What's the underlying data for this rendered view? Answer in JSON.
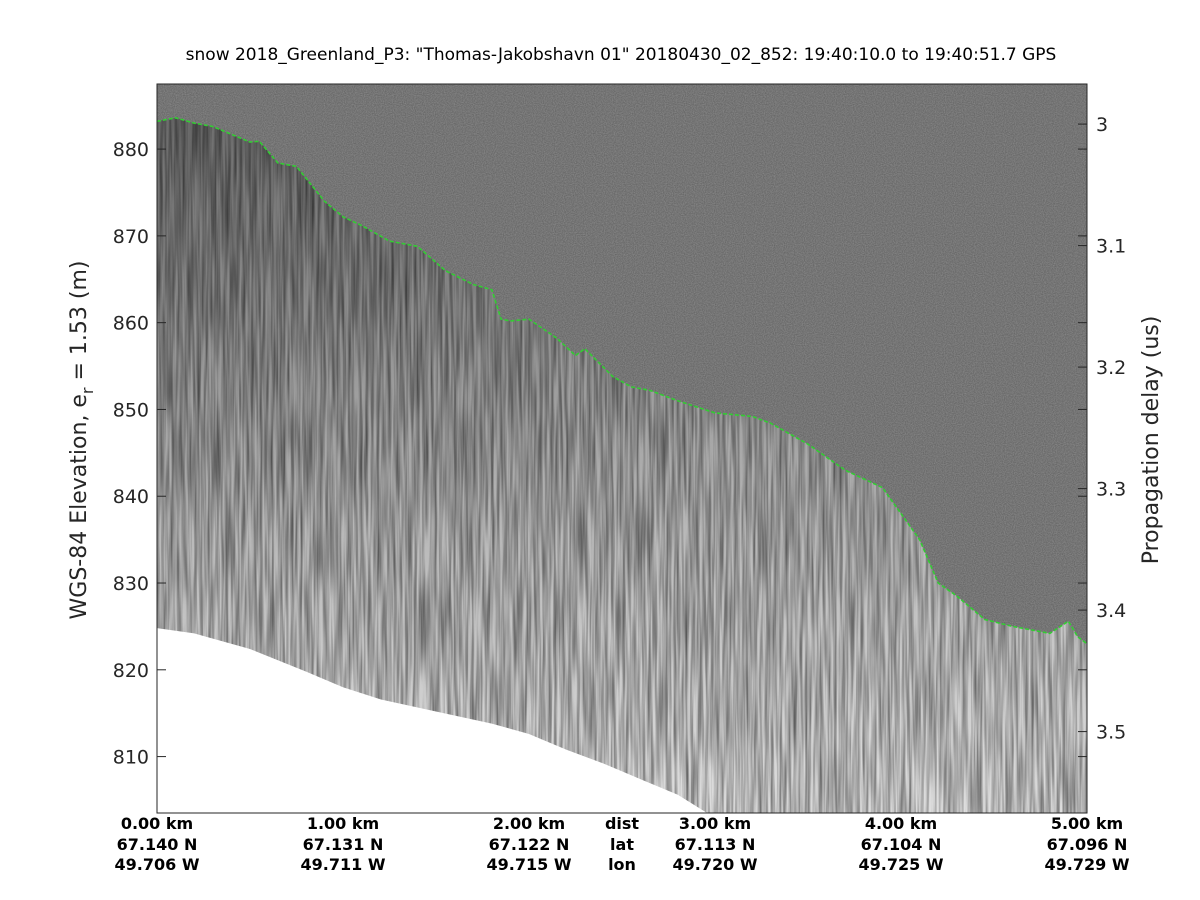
{
  "chart_data": {
    "type": "heatmap",
    "title": "snow 2018_Greenland_P3: \"Thomas-Jakobshavn 01\"  20180430_02_852: 19:40:10.0 to 19:40:51.7 GPS",
    "ylabel_left_prefix": "WGS-84 Elevation, e",
    "ylabel_left_sub": "r",
    "ylabel_left_suffix": " = 1.53 (m)",
    "ylabel_right": "Propagation delay (us)",
    "xlim_km": [
      0,
      5
    ],
    "ylim_left": [
      803.5,
      887.5
    ],
    "yticks_left": [
      810,
      820,
      830,
      840,
      850,
      860,
      870,
      880
    ],
    "ylim_right": [
      2.967,
      3.567
    ],
    "yticks_right": [
      3,
      3.1,
      3.2,
      3.3,
      3.4,
      3.5
    ],
    "bottom_rows": {
      "dist": [
        "0.00 km",
        "1.00 km",
        "2.00 km",
        "3.00 km",
        "4.00 km",
        "5.00 km"
      ],
      "lat": [
        "67.140 N",
        "67.131 N",
        "67.122 N",
        "67.113 N",
        "67.104 N",
        "67.096 N"
      ],
      "lon": [
        "49.706 W",
        "49.711 W",
        "49.715 W",
        "49.720 W",
        "49.725 W",
        "49.729 W"
      ],
      "row_names": [
        "dist",
        "lat",
        "lon"
      ]
    },
    "surface_layer": {
      "name": "surface",
      "color": "#33cc33",
      "x_km": [
        0.0,
        0.1,
        0.2,
        0.3,
        0.5,
        0.55,
        0.65,
        0.75,
        0.9,
        1.0,
        1.1,
        1.25,
        1.4,
        1.55,
        1.7,
        1.8,
        1.85,
        1.9,
        2.0,
        2.15,
        2.25,
        2.3,
        2.45,
        2.55,
        2.65,
        2.8,
        3.0,
        3.2,
        3.3,
        3.5,
        3.7,
        3.9,
        4.1,
        4.2,
        4.3,
        4.45,
        4.6,
        4.8,
        4.9,
        4.95,
        5.0
      ],
      "elevation_m": [
        883.2,
        883.6,
        883.0,
        882.6,
        880.8,
        880.9,
        878.4,
        878.0,
        874.0,
        872.2,
        871.2,
        869.4,
        868.8,
        866.0,
        864.4,
        863.8,
        860.4,
        860.2,
        860.4,
        858.2,
        856.2,
        857.0,
        853.8,
        852.6,
        852.2,
        851.0,
        849.6,
        849.2,
        848.4,
        846.0,
        843.0,
        841.0,
        835.0,
        830.0,
        828.5,
        825.8,
        825.0,
        824.2,
        825.6,
        823.8,
        823.0
      ]
    },
    "no_data_boundary": {
      "x_km": [
        0.0,
        0.2,
        0.5,
        0.8,
        1.0,
        1.2,
        1.5,
        1.8,
        2.0,
        2.2,
        2.4,
        2.6,
        2.8,
        2.95
      ],
      "elevation_m": [
        824.8,
        824.2,
        822.4,
        819.8,
        818.0,
        816.6,
        815.2,
        813.8,
        812.6,
        810.8,
        809.2,
        807.4,
        805.6,
        803.6
      ]
    },
    "colormap": "gray",
    "grid": false,
    "legend": "none"
  }
}
